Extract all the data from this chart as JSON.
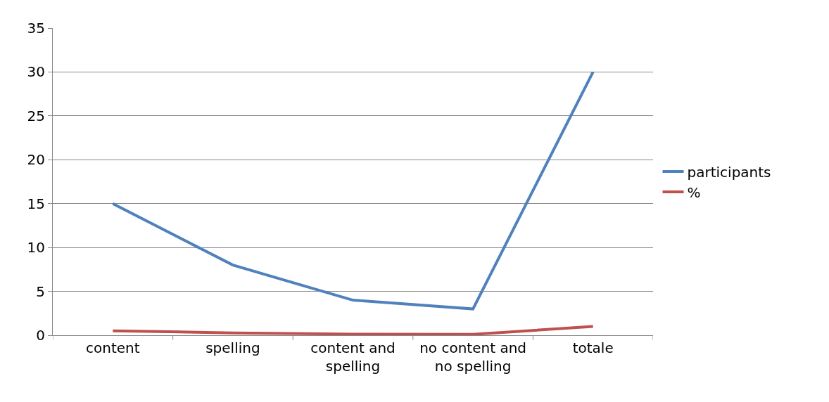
{
  "chart_data": {
    "type": "line",
    "categories": [
      "content",
      "spelling",
      "content and spelling",
      "no content and no spelling",
      "totale"
    ],
    "series": [
      {
        "name": "participants",
        "color": "#4f81bd",
        "values": [
          15,
          8,
          4,
          3,
          30
        ]
      },
      {
        "name": "%",
        "color": "#c0504d",
        "values": [
          0.5,
          0.27,
          0.13,
          0.1,
          1
        ]
      }
    ],
    "ylim": [
      0,
      35
    ],
    "yticks": [
      0,
      5,
      10,
      15,
      20,
      25,
      30,
      35
    ],
    "grid": "y",
    "legend": "right",
    "marker": "none",
    "line_style": "solid"
  }
}
